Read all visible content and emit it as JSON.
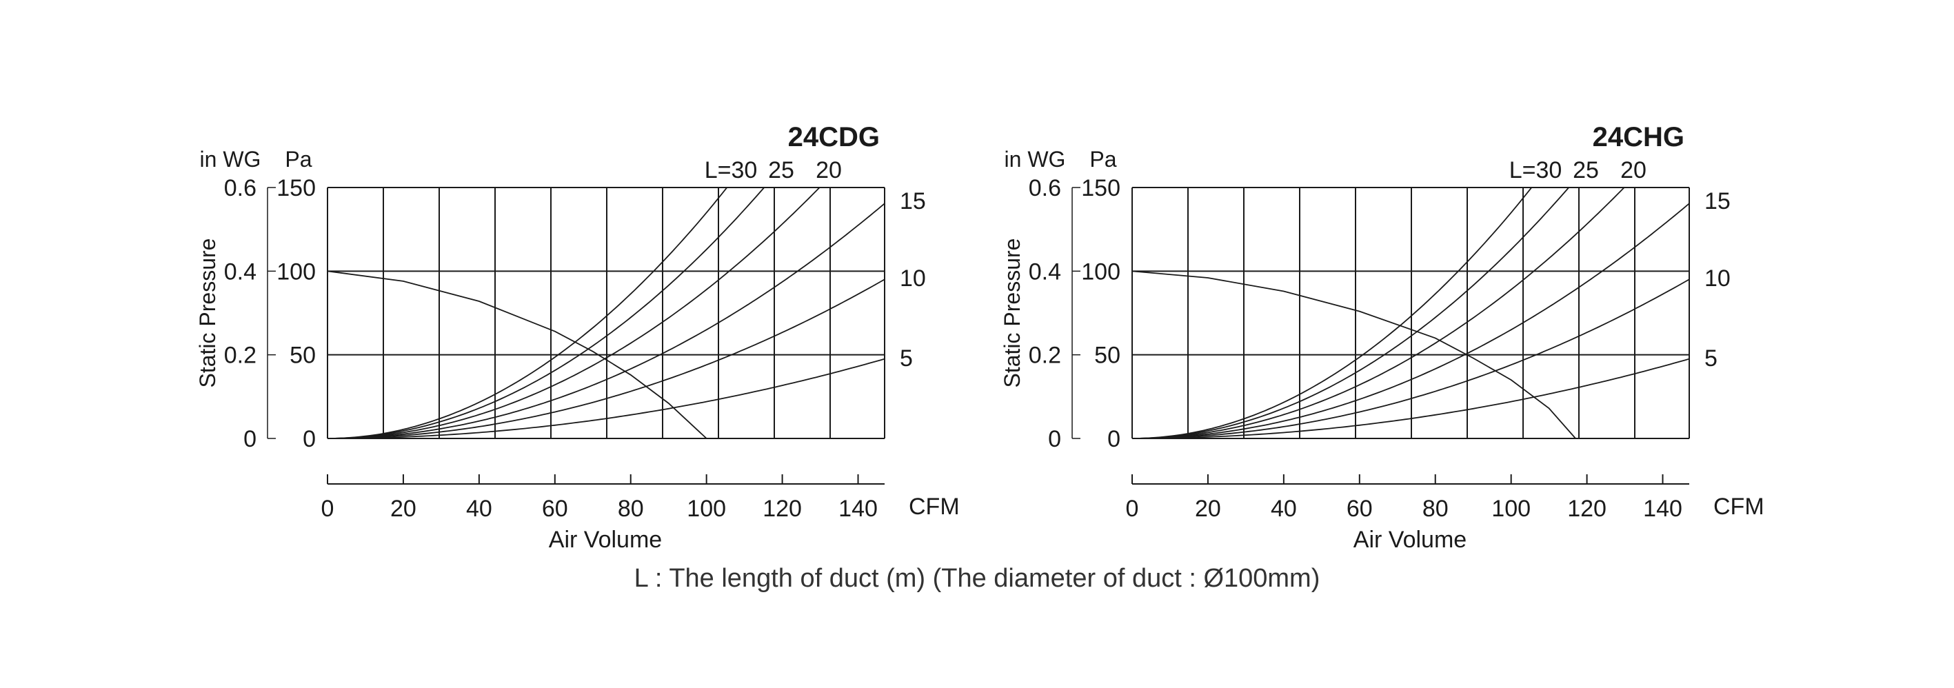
{
  "caption": "L : The length of duct (m) (The diameter of duct : Ø100mm)",
  "colors": {
    "line": "#1a1a1a",
    "axis": "#000000",
    "text": "#1a1a1a"
  },
  "chart_data": [
    {
      "type": "line",
      "title": "24CDG",
      "xlabel": "Air Volume",
      "x_unit": "CFM",
      "ylabel": "Static Pressure",
      "y_units": [
        "in WG",
        "Pa"
      ],
      "xlim": [
        0,
        147
      ],
      "ylim": [
        0,
        150
      ],
      "x_ticks": [
        "0",
        "20",
        "40",
        "60",
        "80",
        "100",
        "120",
        "140"
      ],
      "y_ticks_pa": [
        "0",
        "50",
        "100",
        "150"
      ],
      "y_ticks_inwg": [
        "0",
        "0.2",
        "0.4",
        "0.6"
      ],
      "grid": true,
      "fan_curve": {
        "x": [
          0,
          20,
          40,
          60,
          70,
          80,
          90,
          100
        ],
        "y": [
          100,
          94,
          82,
          64,
          52,
          38,
          21,
          0
        ]
      },
      "duct_curves": [
        {
          "label": "L=30",
          "k": 0.0135
        },
        {
          "label": "25",
          "k": 0.0113
        },
        {
          "label": "20",
          "k": 0.0089
        },
        {
          "label": "15",
          "k": 0.0065
        },
        {
          "label": "10",
          "k": 0.0044
        },
        {
          "label": "5",
          "k": 0.0022
        }
      ]
    },
    {
      "type": "line",
      "title": "24CHG",
      "xlabel": "Air Volume",
      "x_unit": "CFM",
      "ylabel": "Static Pressure",
      "y_units": [
        "in WG",
        "Pa"
      ],
      "xlim": [
        0,
        147
      ],
      "ylim": [
        0,
        150
      ],
      "x_ticks": [
        "0",
        "20",
        "40",
        "60",
        "80",
        "100",
        "120",
        "140"
      ],
      "y_ticks_pa": [
        "0",
        "50",
        "100",
        "150"
      ],
      "y_ticks_inwg": [
        "0",
        "0.2",
        "0.4",
        "0.6"
      ],
      "grid": true,
      "fan_curve": {
        "x": [
          0,
          20,
          40,
          60,
          80,
          90,
          100,
          110,
          117
        ],
        "y": [
          100,
          96,
          88,
          76,
          60,
          48,
          35,
          18,
          0
        ]
      },
      "duct_curves": [
        {
          "label": "L=30",
          "k": 0.0135
        },
        {
          "label": "25",
          "k": 0.0113
        },
        {
          "label": "20",
          "k": 0.0089
        },
        {
          "label": "15",
          "k": 0.0065
        },
        {
          "label": "10",
          "k": 0.0044
        },
        {
          "label": "5",
          "k": 0.0022
        }
      ]
    }
  ]
}
